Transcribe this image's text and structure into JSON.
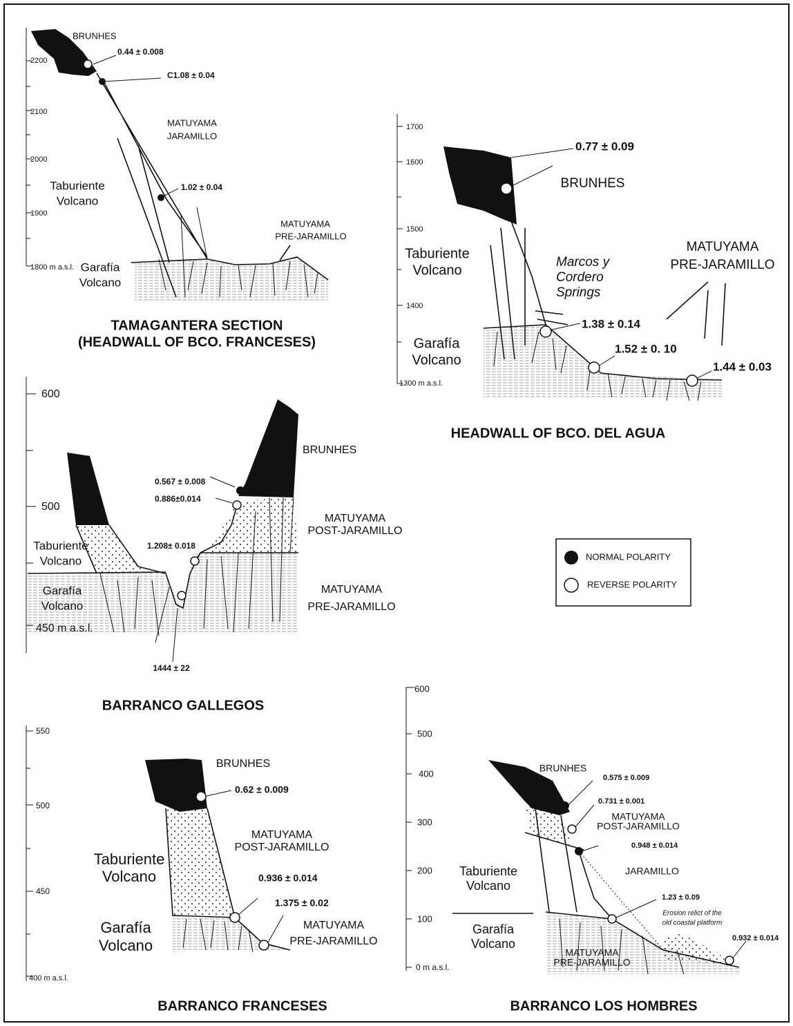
{
  "tamagantera": {
    "title": [
      "TAMAGANTERA SECTION",
      "(HEADWALL OF  BCO. FRANCESES)"
    ],
    "ticks": [
      "2200",
      "2100",
      "2000",
      "1900",
      "1800 m a.s.l."
    ],
    "labels": [
      "BRUNHES",
      "0.44 ± 0.008",
      "C1.08 ± 0.04",
      "MATUYAMA",
      "JARAMILLO",
      "Taburiente",
      "Volcano",
      "1.02 ± 0.04",
      "MATUYAMA",
      "PRE-JARAMILLO",
      "Garafía",
      "Volcano"
    ]
  },
  "agua": {
    "title": [
      "HEADWALL OF  BCO. DEL AGUA"
    ],
    "ticks": [
      "1700",
      "1600",
      "1500",
      "1400",
      "1300 m a.s.l."
    ],
    "labels": [
      "0.77 ± 0.09",
      "BRUNHES",
      "MATUYAMA",
      "PRE-JARAMILLO",
      "Taburiente",
      "Volcano",
      "Marcos y",
      "Cordero",
      "Springs",
      "1.38 ± 0.14",
      "1.52 ± 0. 10",
      "1.44 ± 0.03",
      "Garafía",
      "Volcano"
    ]
  },
  "gallegos": {
    "title": [
      "BARRANCO GALLEGOS"
    ],
    "ticks": [
      "600",
      "500",
      "450 m a.s.l."
    ],
    "labels": [
      "BRUNHES",
      "0.567 ± 0.008",
      "0.886±0.014",
      "MATUYAMA",
      "POST-JARAMILLO",
      "Taburiente",
      "Volcano",
      "1.208± 0.018",
      "Garafía",
      "Volcano",
      "MATUYAMA",
      "PRE-JARAMILLO",
      "1444 ± 22"
    ]
  },
  "legend": {
    "normal": "NORMAL POLARITY",
    "reverse": "REVERSE POLARITY"
  },
  "franceses": {
    "title": [
      "BARRANCO FRANCESES"
    ],
    "ticks": [
      "550",
      "500",
      "450",
      "400 m a.s.l."
    ],
    "labels": [
      "BRUNHES",
      "0.62 ± 0.009",
      "MATUYAMA",
      "POST-JARAMILLO",
      "Taburiente",
      "Volcano",
      "0.936 ± 0.014",
      "1.375 ± 0.02",
      "MATUYAMA",
      "PRE-JARAMILLO",
      "Garafía",
      "Volcano"
    ]
  },
  "hombres": {
    "title": [
      "BARRANCO LOS HOMBRES"
    ],
    "ticks": [
      "600",
      "500",
      "400",
      "300",
      "200",
      "100",
      "0 m a.s.l."
    ],
    "labels": [
      "BRUNHES",
      "0.575 ± 0.009",
      "0.731 ± 0.001",
      "MATUYAMA",
      "POST-JARAMILLO",
      "0.948 ± 0.014",
      "JARAMILLO",
      "Taburiente",
      "Volcano",
      "1.23 ± 0.09",
      "Erosion relict of the",
      "old coastal platform",
      "Garafía",
      "Volcano",
      "0.932 ± 0.014",
      "MATUYAMA",
      "PRE-JARAMILLO"
    ]
  }
}
